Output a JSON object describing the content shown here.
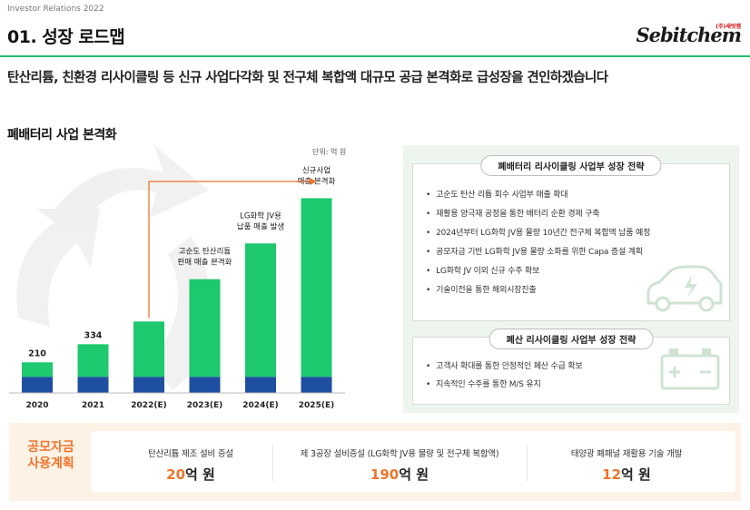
{
  "header": {
    "ir_label": "Investor Relations 2022",
    "title": "01. 성장 로드맵",
    "logo_text": "Sebitchem",
    "logo_sub": "(주)새빗켐",
    "accent_color": "#1fbf6a"
  },
  "headline": "탄산리튬, 친환경 리사이클링 등 신규 사업다각화 및 전구체 복합액 대규모 공급 본격화로 급성장을 견인하겠습니다",
  "section_title": "폐배터리 사업 본격화",
  "unit_label": "단위: 억 원",
  "chart_data": {
    "type": "bar",
    "categories": [
      "2020",
      "2021",
      "2022(E)",
      "2023(E)",
      "2024(E)",
      "2025(E)"
    ],
    "values": [
      210,
      334,
      490,
      780,
      1025,
      1335
    ],
    "data_labels": [
      "210",
      "334",
      "",
      "",
      "",
      ""
    ],
    "ylim": [
      0,
      1400
    ],
    "stack_bottom_value": 110,
    "colors": {
      "top": "#1ec86e",
      "bottom": "#1e4fa0"
    },
    "annotations": [
      {
        "category": "2023(E)",
        "text": [
          "고순도 탄산리튬",
          "판매 매출 본격화"
        ]
      },
      {
        "category": "2024(E)",
        "text": [
          "LG화학 JV용",
          "납품 매출 발생"
        ]
      },
      {
        "category": "2025(E)",
        "text": [
          "신규사업",
          "매출 본격화"
        ]
      }
    ],
    "arrow": {
      "from": "2022(E)",
      "to": "2025(E)",
      "color": "#f0742c"
    }
  },
  "battery_strategy": {
    "title": "폐배터리 리사이클링 사업부 성장 전략",
    "items": [
      "고순도 탄산 리튬 회수 사업부 매출 확대",
      "재활용 양극재 공정을 통한 배터리 순환 경제 구축",
      "2024년부터 LG화학 JV용 물량 10년간 전구체 복합액 납품 예정",
      "공모자금 기반 LG화학 JV용 물량 소화를 위한 Capa 증설 계획",
      "LG화학 JV 이외 신규 수주 확보",
      "기술이전을 통한 해외시장진출"
    ]
  },
  "acid_strategy": {
    "title": "폐산 리사이클링 사업부 성장 전략",
    "items": [
      "고객사 확대를 통한 안정적인 폐산 수급 확보",
      "지속적인 수주를 통한 M/S 유지"
    ]
  },
  "fund_plan": {
    "title_line1": "공모자금",
    "title_line2": "사용계획",
    "items": [
      {
        "label": "탄산리튬 제조 설비 증설",
        "amount": "20",
        "unit": "억 원"
      },
      {
        "label": "제 3공장 설비증설 (LG화학 JV용 물량 및 전구체 복합액)",
        "amount": "190",
        "unit": "억 원"
      },
      {
        "label": "태양광 폐패널 재활용 기술 개발",
        "amount": "12",
        "unit": "억 원"
      }
    ]
  }
}
